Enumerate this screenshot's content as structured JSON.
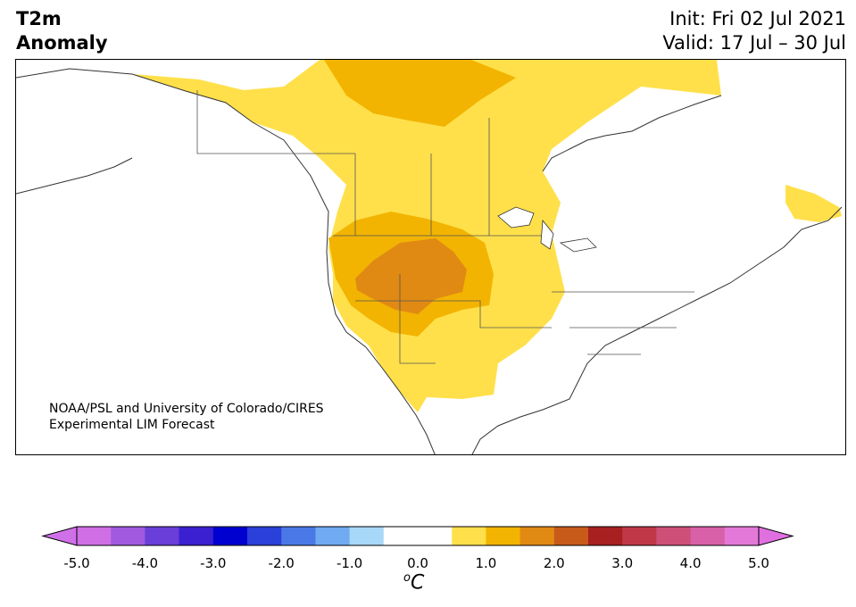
{
  "header": {
    "title_line1": "T2m",
    "title_line2": "Anomaly",
    "init": "Init: Fri 02 Jul 2021",
    "valid": "Valid: 17 Jul – 30 Jul"
  },
  "credit": {
    "line1": "NOAA/PSL and University of Colorado/CIRES",
    "line2": "Experimental LIM Forecast"
  },
  "colorbar": {
    "tick_labels": [
      "-5.0",
      "-4.0",
      "-3.0",
      "-2.0",
      "-1.0",
      "0.0",
      "1.0",
      "2.0",
      "3.0",
      "4.0",
      "5.0"
    ],
    "units_base": "C",
    "units_sup": "o",
    "colors": [
      "#d06ee6",
      "#a05ae0",
      "#6a3ed8",
      "#3a20d0",
      "#0000d0",
      "#2a40d8",
      "#4a78e6",
      "#70aaf0",
      "#a8d8f8",
      "#ffffff",
      "#ffffff",
      "#ffe04a",
      "#f2b400",
      "#e08a14",
      "#c85a1a",
      "#a82020",
      "#c03848",
      "#cc5078",
      "#d860a8",
      "#e478d8"
    ],
    "under_color": "#d070e8",
    "over_color": "#e070e0"
  },
  "map": {
    "anomaly_colors": {
      "0.5-1.0": "#ffe04a",
      "1.0-1.5": "#f2b400",
      "1.5-2.0": "#e08a14"
    }
  }
}
